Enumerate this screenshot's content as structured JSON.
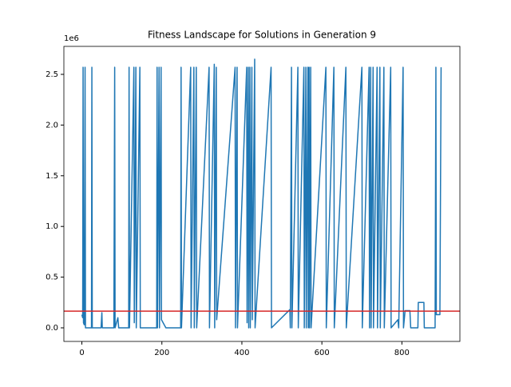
{
  "chart_data": {
    "type": "line",
    "title": "Fitness Landscape for Solutions in Generation 9",
    "y_offset_label": "1e6",
    "color": "#1f77b4",
    "x": [
      0,
      2,
      3,
      4,
      6,
      8,
      9,
      24,
      25,
      26,
      48,
      50,
      51,
      80,
      82,
      83,
      90,
      92,
      117,
      118,
      119,
      130,
      131,
      135,
      136,
      145,
      146,
      187,
      188,
      189,
      193,
      194,
      198,
      199,
      210,
      247,
      248,
      249,
      272,
      273,
      280,
      281,
      286,
      287,
      318,
      319,
      331,
      332,
      336,
      337,
      383,
      384,
      388,
      389,
      412,
      413,
      416,
      417,
      420,
      421,
      425,
      426,
      432,
      433,
      473,
      474,
      520,
      521,
      524,
      525,
      540,
      541,
      555,
      556,
      560,
      561,
      565,
      566,
      568,
      569,
      572,
      573,
      610,
      611,
      630,
      631,
      660,
      661,
      700,
      701,
      718,
      719,
      722,
      723,
      728,
      729,
      738,
      739,
      745,
      746,
      755,
      756,
      772,
      773,
      790,
      792,
      803,
      804,
      808,
      820,
      822,
      840,
      841,
      855,
      856,
      883,
      885,
      886,
      895,
      898
    ],
    "values": [
      130000,
      100000,
      2570000,
      50000,
      30000,
      2570000,
      0,
      0,
      2570000,
      0,
      0,
      150000,
      0,
      0,
      2570000,
      0,
      100000,
      0,
      0,
      2570000,
      0,
      2570000,
      50000,
      2570000,
      0,
      2570000,
      0,
      0,
      2570000,
      0,
      2570000,
      0,
      2570000,
      80000,
      0,
      0,
      2570000,
      0,
      2570000,
      0,
      2570000,
      0,
      2570000,
      0,
      2570000,
      0,
      2600000,
      0,
      2570000,
      80000,
      2570000,
      0,
      2570000,
      0,
      2570000,
      50000,
      2570000,
      0,
      2570000,
      0,
      2570000,
      80000,
      2650000,
      0,
      2570000,
      0,
      180000,
      0,
      2570000,
      0,
      2570000,
      0,
      2570000,
      0,
      2570000,
      0,
      2570000,
      0,
      2570000,
      0,
      2570000,
      0,
      2570000,
      0,
      2570000,
      0,
      2570000,
      0,
      2570000,
      0,
      2570000,
      0,
      2570000,
      0,
      2570000,
      0,
      2570000,
      0,
      2570000,
      0,
      2570000,
      0,
      2570000,
      0,
      80000,
      0,
      2570000,
      0,
      170000,
      170000,
      0,
      0,
      250000,
      250000,
      0,
      0,
      2570000,
      130000,
      130000,
      2570000
    ],
    "hline": {
      "value": 165000,
      "color": "#d62728"
    },
    "xlim": [
      -45,
      945
    ],
    "ylim": [
      -134000,
      2776000
    ],
    "xticks": [
      0,
      200,
      400,
      600,
      800
    ],
    "yticks": [
      {
        "value": 0,
        "label": "0.0"
      },
      {
        "value": 500000,
        "label": "0.5"
      },
      {
        "value": 1000000,
        "label": "1.0"
      },
      {
        "value": 1500000,
        "label": "1.5"
      },
      {
        "value": 2000000,
        "label": "2.0"
      },
      {
        "value": 2500000,
        "label": "2.5"
      }
    ]
  }
}
